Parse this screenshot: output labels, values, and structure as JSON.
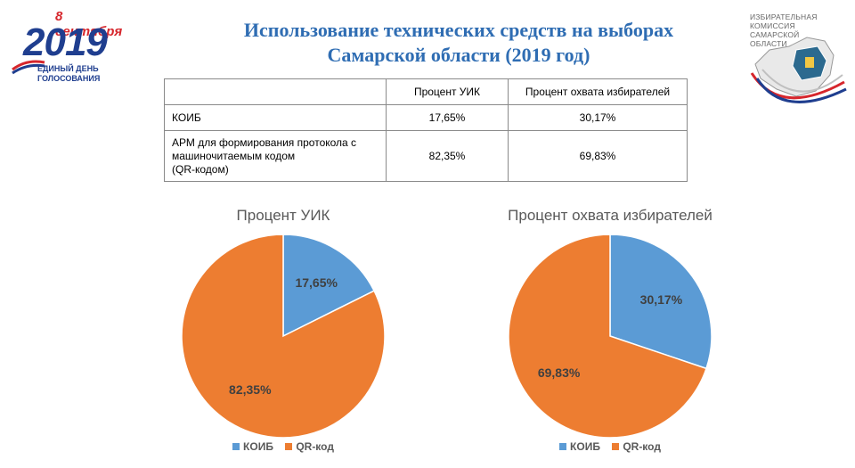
{
  "header": {
    "logo_left": {
      "date": "8 сентября",
      "year": "2019",
      "line1": "ЕДИНЫЙ ДЕНЬ",
      "line2": "ГОЛОСОВАНИЯ"
    },
    "title_line1": "Использование технических средств на выборах",
    "title_line2": "Самарской области (2019 год)",
    "logo_right": {
      "lines": [
        "ИЗБИРАТЕЛЬНАЯ",
        "КОМИССИЯ",
        "САМАРСКОЙ",
        "ОБЛАСТИ"
      ]
    }
  },
  "table": {
    "headers": [
      "",
      "Процент УИК",
      "Процент охвата избирателей"
    ],
    "rows": [
      {
        "label": "КОИБ",
        "uik": "17,65%",
        "coverage": "30,17%"
      },
      {
        "label_lines": [
          "АРМ для формирования протокола с",
          "машиночитаемым кодом",
          "(QR-кодом)"
        ],
        "uik": "82,35%",
        "coverage": "69,83%"
      }
    ]
  },
  "colors": {
    "koib": "#5b9bd5",
    "qr": "#ed7d31",
    "title": "#2f6db3"
  },
  "chart_data": [
    {
      "type": "pie",
      "title": "Процент УИК",
      "categories": [
        "КОИБ",
        "QR-код"
      ],
      "values": [
        17.65,
        82.35
      ],
      "labels": [
        "17,65%",
        "82,35%"
      ],
      "legend": "bottom"
    },
    {
      "type": "pie",
      "title": "Процент охвата избирателей",
      "categories": [
        "КОИБ",
        "QR-код"
      ],
      "values": [
        30.17,
        69.83
      ],
      "labels": [
        "30,17%",
        "69,83%"
      ],
      "legend": "bottom"
    }
  ]
}
